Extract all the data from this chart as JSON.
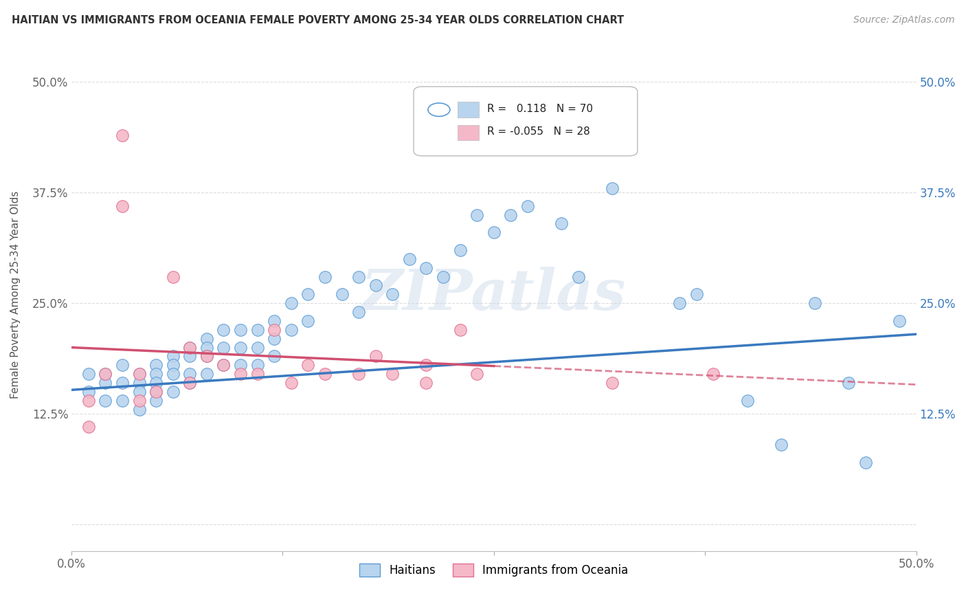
{
  "title": "HAITIAN VS IMMIGRANTS FROM OCEANIA FEMALE POVERTY AMONG 25-34 YEAR OLDS CORRELATION CHART",
  "source": "Source: ZipAtlas.com",
  "ylabel": "Female Poverty Among 25-34 Year Olds",
  "xlim": [
    0.0,
    0.5
  ],
  "ylim": [
    -0.03,
    0.55
  ],
  "xticks": [
    0.0,
    0.125,
    0.25,
    0.375,
    0.5
  ],
  "xticklabels": [
    "0.0%",
    "",
    "",
    "",
    "50.0%"
  ],
  "yticks": [
    0.0,
    0.125,
    0.25,
    0.375,
    0.5
  ],
  "yticklabels": [
    "",
    "12.5%",
    "25.0%",
    "37.5%",
    "50.0%"
  ],
  "blue_R": 0.118,
  "blue_N": 70,
  "pink_R": -0.055,
  "pink_N": 28,
  "blue_color": "#b8d4ee",
  "blue_edge_color": "#5b9bd5",
  "blue_line_color": "#3a7abf",
  "pink_color": "#f4b8c8",
  "pink_edge_color": "#e07090",
  "pink_line_color": "#d05070",
  "legend_blue_label": "Haitians",
  "legend_pink_label": "Immigrants from Oceania",
  "blue_x": [
    0.01,
    0.01,
    0.02,
    0.02,
    0.02,
    0.03,
    0.03,
    0.03,
    0.04,
    0.04,
    0.04,
    0.04,
    0.05,
    0.05,
    0.05,
    0.05,
    0.05,
    0.06,
    0.06,
    0.06,
    0.06,
    0.07,
    0.07,
    0.07,
    0.07,
    0.08,
    0.08,
    0.08,
    0.08,
    0.09,
    0.09,
    0.09,
    0.1,
    0.1,
    0.1,
    0.11,
    0.11,
    0.11,
    0.12,
    0.12,
    0.12,
    0.13,
    0.13,
    0.14,
    0.14,
    0.15,
    0.16,
    0.17,
    0.17,
    0.18,
    0.19,
    0.2,
    0.21,
    0.22,
    0.23,
    0.24,
    0.25,
    0.26,
    0.27,
    0.29,
    0.3,
    0.32,
    0.36,
    0.37,
    0.4,
    0.42,
    0.44,
    0.46,
    0.47,
    0.49
  ],
  "blue_y": [
    0.17,
    0.15,
    0.16,
    0.14,
    0.17,
    0.16,
    0.14,
    0.18,
    0.17,
    0.16,
    0.15,
    0.13,
    0.18,
    0.17,
    0.16,
    0.15,
    0.14,
    0.19,
    0.18,
    0.17,
    0.15,
    0.2,
    0.19,
    0.17,
    0.16,
    0.21,
    0.2,
    0.19,
    0.17,
    0.22,
    0.2,
    0.18,
    0.22,
    0.2,
    0.18,
    0.22,
    0.2,
    0.18,
    0.23,
    0.21,
    0.19,
    0.25,
    0.22,
    0.26,
    0.23,
    0.28,
    0.26,
    0.28,
    0.24,
    0.27,
    0.26,
    0.3,
    0.29,
    0.28,
    0.31,
    0.35,
    0.33,
    0.35,
    0.36,
    0.34,
    0.28,
    0.38,
    0.25,
    0.26,
    0.14,
    0.09,
    0.25,
    0.16,
    0.07,
    0.23
  ],
  "pink_x": [
    0.01,
    0.01,
    0.02,
    0.03,
    0.03,
    0.04,
    0.04,
    0.05,
    0.06,
    0.07,
    0.07,
    0.08,
    0.09,
    0.1,
    0.11,
    0.12,
    0.13,
    0.14,
    0.15,
    0.17,
    0.18,
    0.19,
    0.21,
    0.21,
    0.23,
    0.24,
    0.32,
    0.38
  ],
  "pink_y": [
    0.14,
    0.11,
    0.17,
    0.44,
    0.36,
    0.17,
    0.14,
    0.15,
    0.28,
    0.2,
    0.16,
    0.19,
    0.18,
    0.17,
    0.17,
    0.22,
    0.16,
    0.18,
    0.17,
    0.17,
    0.19,
    0.17,
    0.18,
    0.16,
    0.22,
    0.17,
    0.16,
    0.17
  ],
  "watermark_text": "ZIPatlas",
  "background_color": "#ffffff",
  "grid_color": "#dddddd"
}
